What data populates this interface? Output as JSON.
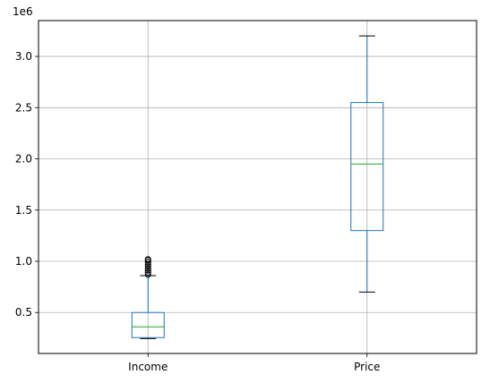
{
  "chart_data": {
    "type": "boxplot",
    "title": "",
    "xlabel": "",
    "ylabel": "",
    "y_offset_label": "1e6",
    "y_scale_factor": 1000000,
    "categories": [
      "Income",
      "Price"
    ],
    "ylim": [
      0.1,
      3.35
    ],
    "yticks": [
      0.5,
      1.0,
      1.5,
      2.0,
      2.5,
      3.0
    ],
    "ytick_labels": [
      "0.5",
      "1.0",
      "1.5",
      "2.0",
      "2.5",
      "3.0"
    ],
    "grid": true,
    "boxes": [
      {
        "name": "Income",
        "whisker_low": 0.245,
        "q1": 0.255,
        "median": 0.36,
        "q3": 0.5,
        "whisker_high": 0.86,
        "outliers": [
          0.87,
          0.89,
          0.91,
          0.93,
          0.95,
          0.97,
          0.99,
          1.01,
          1.02
        ]
      },
      {
        "name": "Price",
        "whisker_low": 0.7,
        "q1": 1.3,
        "median": 1.95,
        "q3": 2.55,
        "whisker_high": 3.2,
        "outliers": []
      }
    ],
    "colors": {
      "box": "#1f77b4",
      "median": "#2ca02c",
      "whisker": "#1f77b4",
      "cap": "#000000",
      "outlier": "#000000",
      "grid": "#b0b0b0"
    }
  }
}
